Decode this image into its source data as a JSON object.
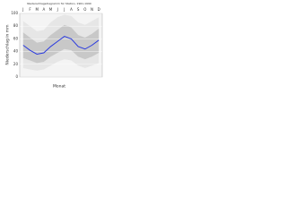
{
  "chart_data": {
    "type": "line",
    "title": "Niederschlagsdiagramm für Station, 1961-1990",
    "categories": [
      "J",
      "F",
      "M",
      "A",
      "M",
      "J",
      "J",
      "A",
      "S",
      "O",
      "N",
      "D"
    ],
    "xlabel": "Monat",
    "ylabel": "Niederschlag in mm",
    "series": [
      {
        "color": "#2a3adf",
        "values": [
          50,
          42,
          36,
          38,
          48,
          56,
          64,
          60,
          48,
          44,
          50,
          58
        ]
      }
    ],
    "bands": [
      {
        "color": "#e6e6e6",
        "lower": [
          14,
          12,
          10,
          12,
          18,
          24,
          28,
          26,
          18,
          14,
          18,
          22
        ],
        "upper": [
          88,
          80,
          72,
          74,
          86,
          94,
          98,
          96,
          86,
          82,
          88,
          94
        ]
      },
      {
        "color": "#c8c8c8",
        "lower": [
          30,
          26,
          22,
          24,
          32,
          38,
          44,
          42,
          32,
          28,
          32,
          38
        ],
        "upper": [
          70,
          62,
          54,
          56,
          66,
          74,
          82,
          78,
          66,
          62,
          68,
          76
        ]
      }
    ],
    "ylim": [
      0,
      100
    ],
    "yticks": [
      0,
      20,
      40,
      60,
      80,
      100
    ],
    "grid": true
  }
}
